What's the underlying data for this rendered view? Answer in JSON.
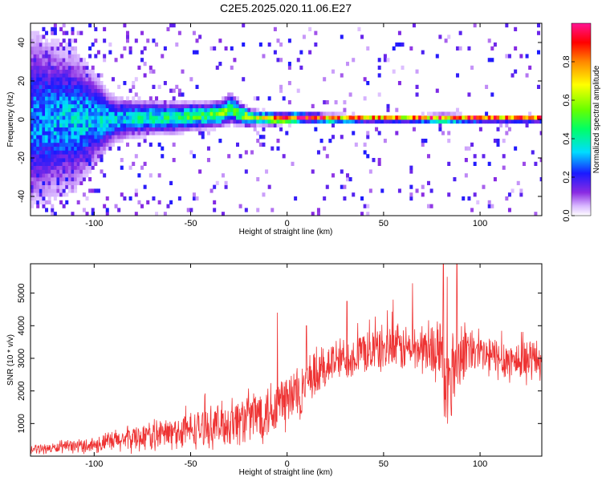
{
  "title": "C2E5.2025.020.11.06.E27",
  "colors": {
    "snr_line": "#ee3333",
    "colorbar_stops": [
      "#ffffff",
      "#d9b8ff",
      "#8a2be2",
      "#1a1aff",
      "#00ddff",
      "#00ff66",
      "#66ff00",
      "#ffff00",
      "#ff8800",
      "#ff0000",
      "#ff1493"
    ]
  },
  "chart_data": [
    {
      "type": "heatmap",
      "xlabel": "Height of straight line (km)",
      "ylabel": "Frequency (Hz)",
      "xlim": [
        -133,
        132
      ],
      "ylim": [
        -50,
        50
      ],
      "x_ticks": [
        -100,
        -50,
        0,
        50,
        100
      ],
      "x_tick_labels": [
        "-100",
        "-50",
        "0",
        "50",
        "100"
      ],
      "y_ticks": [
        -40,
        -20,
        0,
        20,
        40
      ],
      "y_tick_labels": [
        "-40",
        "-20",
        "0",
        "20",
        "40"
      ],
      "colorbar": {
        "label": "Normalized spectral amplitude",
        "range": [
          0,
          1
        ],
        "ticks": [
          0.0,
          0.2,
          0.4,
          0.6,
          0.8
        ],
        "tick_labels": [
          "0.0",
          "0.2",
          "0.4",
          "0.6",
          "0.8"
        ]
      },
      "ridge_profile": {
        "x": [
          -133,
          -110,
          -90,
          -75,
          -60,
          -45,
          -35,
          -30,
          -25,
          -20,
          -15,
          -10,
          -5,
          0,
          5,
          10,
          20,
          40,
          60,
          80,
          100,
          132
        ],
        "center_freq": [
          0,
          0,
          0,
          1,
          1,
          2,
          3,
          6,
          3,
          1,
          1,
          0.5,
          0.5,
          0.5,
          1,
          1,
          0.5,
          0.5,
          0.5,
          0.5,
          0.5,
          0.5
        ],
        "half_width_hz": [
          40,
          30,
          10,
          8,
          7,
          6,
          6,
          7,
          5,
          4,
          3,
          3,
          2.5,
          2.5,
          2.5,
          2,
          2,
          1.5,
          1.5,
          2,
          1.5,
          1.5
        ],
        "peak_amplitude": [
          0.3,
          0.35,
          0.35,
          0.4,
          0.45,
          0.5,
          0.55,
          0.5,
          0.55,
          0.6,
          0.7,
          0.8,
          0.85,
          0.9,
          0.9,
          0.9,
          0.92,
          0.95,
          0.95,
          0.95,
          0.95,
          0.95
        ]
      }
    },
    {
      "type": "line",
      "xlabel": "Height of straight line (km)",
      "ylabel": "SNR (10 * v/v)",
      "xlim": [
        -133,
        132
      ],
      "ylim": [
        0,
        5900
      ],
      "x_ticks": [
        -100,
        -50,
        0,
        50,
        100
      ],
      "x_tick_labels": [
        "-100",
        "-50",
        "0",
        "50",
        "100"
      ],
      "y_ticks": [
        1000,
        2000,
        3000,
        4000,
        5000
      ],
      "y_tick_labels": [
        "1000",
        "2000",
        "3000",
        "4000",
        "5000"
      ],
      "series": [
        {
          "envelope": {
            "x": [
              -133,
              -120,
              -100,
              -90,
              -80,
              -70,
              -60,
              -50,
              -40,
              -30,
              -20,
              -10,
              -5,
              0,
              5,
              10,
              15,
              20,
              30,
              40,
              50,
              60,
              70,
              80,
              82,
              85,
              88,
              90,
              100,
              110,
              120,
              132
            ],
            "mean": [
              200,
              250,
              350,
              450,
              550,
              650,
              700,
              800,
              900,
              1000,
              1200,
              1400,
              1600,
              1700,
              1900,
              2100,
              2400,
              2800,
              3000,
              3200,
              3300,
              3300,
              3300,
              3200,
              1800,
              2600,
              3000,
              3300,
              3100,
              3000,
              2900,
              3000
            ],
            "spread": [
              150,
              150,
              250,
              350,
              400,
              450,
              500,
              550,
              600,
              700,
              800,
              900,
              1000,
              1000,
              900,
              800,
              800,
              700,
              650,
              650,
              700,
              700,
              750,
              900,
              1500,
              1500,
              1500,
              900,
              650,
              650,
              650,
              650
            ]
          },
          "spikes": [
            {
              "x": -5,
              "y": 4400
            },
            {
              "x": 10,
              "y": 4000
            },
            {
              "x": 31,
              "y": 4750
            },
            {
              "x": 55,
              "y": 4800
            },
            {
              "x": 65,
              "y": 5300
            },
            {
              "x": 81,
              "y": 5900
            },
            {
              "x": 83,
              "y": 5500
            },
            {
              "x": 88,
              "y": 5900
            }
          ]
        }
      ]
    }
  ]
}
